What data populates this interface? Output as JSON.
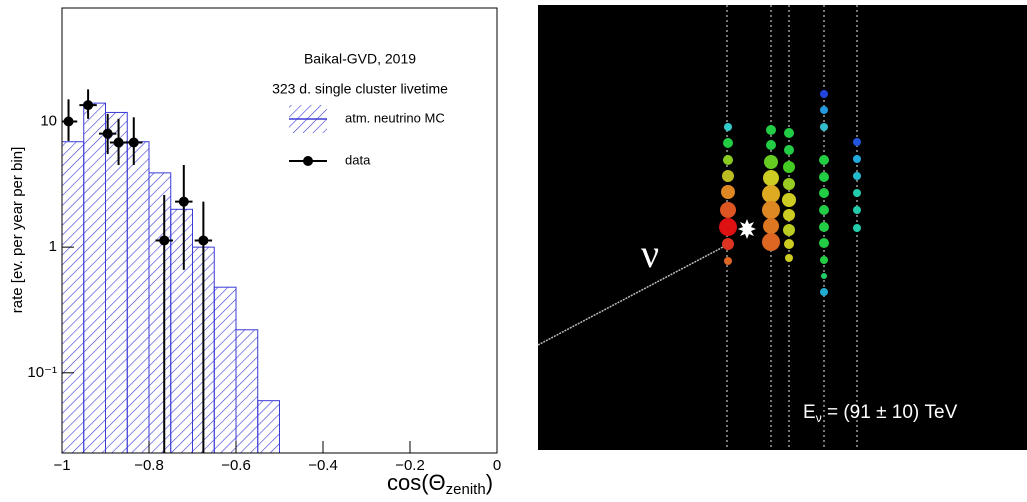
{
  "chart_data": {
    "type": "histogram",
    "y_label": "rate [ev. per year per bin]",
    "x_label": {
      "main": "cos(Θ",
      "sub": "zenith",
      "close": ")"
    },
    "annotations": [
      "Baikal-GVD, 2019",
      "323 d. single cluster livetime"
    ],
    "name": "atm. neutrino MC",
    "color": "#3b3bd6",
    "bins": [
      -1,
      -0.95,
      -0.9,
      -0.85,
      -0.8,
      -0.75,
      -0.7,
      -0.65,
      -0.6,
      -0.55,
      -0.5
    ],
    "values": [
      6.9,
      14,
      11.8,
      6.9,
      3.9,
      2.0,
      1.0,
      0.48,
      0.22,
      0.06
    ],
    "points": {
      "name": "data",
      "color": "#000000",
      "xerr": 0.02,
      "x": [
        -0.985,
        -0.94,
        -0.895,
        -0.87,
        -0.835,
        -0.765,
        -0.72,
        -0.675
      ],
      "values": [
        10,
        13.5,
        8,
        6.8,
        6.8,
        1.13,
        2.3,
        1.13
      ],
      "ylow": [
        7,
        10.5,
        5.5,
        4.5,
        4.5,
        0,
        0.66,
        0
      ],
      "yhigh": [
        15,
        18,
        11.5,
        10.5,
        10.8,
        2.6,
        4.5,
        2.3
      ]
    },
    "log_y": true,
    "xlim": [
      -1,
      0
    ],
    "ylim": [
      0.023,
      80
    ],
    "xticks": [
      {
        "value": -1,
        "label": "−1"
      },
      {
        "value": -0.8,
        "label": "−0.8"
      },
      {
        "value": -0.6,
        "label": "−0.6"
      },
      {
        "value": -0.4,
        "label": "−0.4"
      },
      {
        "value": -0.2,
        "label": "−0.2"
      },
      0
    ],
    "yticks": [
      {
        "value": 0.1,
        "label": "10⁻¹"
      },
      1,
      10
    ]
  },
  "event_display": {
    "neutrino_symbol": "ν",
    "energy_label": {
      "symbol": "E",
      "subscript": "ν",
      "text": " = (91 ± 10) TeV"
    }
  }
}
